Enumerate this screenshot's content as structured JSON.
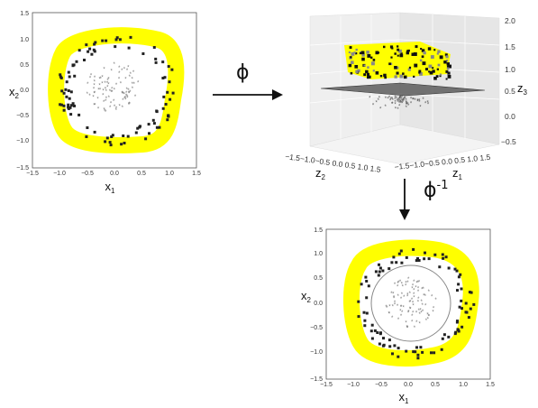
{
  "colors": {
    "highlight": "#ffff00",
    "outer_points": "#222222",
    "inner_points": "#777777",
    "plane": "#4a4a4a",
    "frame": "#555555",
    "circle": "#888888"
  },
  "mapping": {
    "forward_label": "ϕ",
    "inverse_label": "ϕ",
    "inverse_superscript": "-1"
  },
  "plot_2d": {
    "ticks": [
      "−1.5",
      "−1.0",
      "−0.5",
      "0.0",
      "0.5",
      "1.0",
      "1.5"
    ],
    "xlabel": "x",
    "xlabel_sub": "1",
    "ylabel": "x",
    "ylabel_sub": "2"
  },
  "plot_3d": {
    "z3_ticks": [
      "2.0",
      "1.5",
      "1.0",
      "0.5",
      "0.0",
      "−0.5"
    ],
    "z2_ticks": "−1.5−1.0−0.5 0.0 0.5 1.0 1.5",
    "z1_ticks": "−1.5−1.0−0.5 0.0 0.5 1.0 1.5",
    "z1_label": "z",
    "z1_sub": "1",
    "z2_label": "z",
    "z2_sub": "2",
    "z3_label": "z",
    "z3_sub": "3"
  }
}
